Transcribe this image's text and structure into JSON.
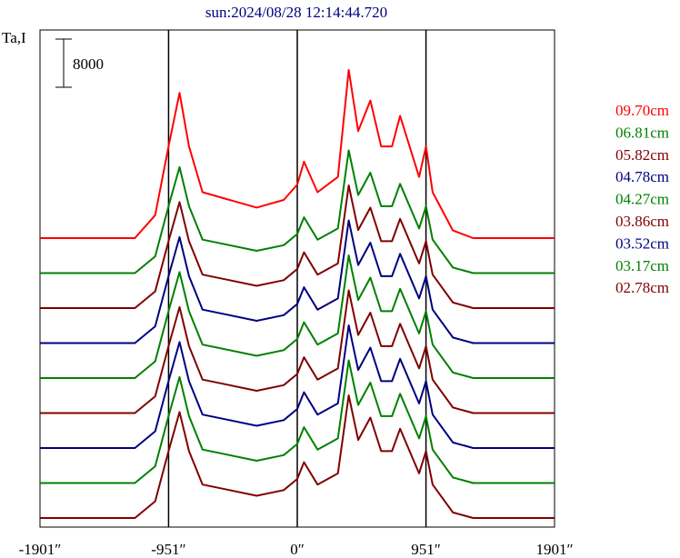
{
  "chart_data": {
    "type": "line",
    "title": "sun:2024/08/28 12:14:44.720",
    "ylabel": "Ta,I",
    "scale_bar_label": "8000",
    "xlabel": "",
    "x_tick_labels": [
      "-1901″",
      "-951″",
      "0″",
      "951″",
      "1901″"
    ],
    "x_ticks": [
      -1901,
      -951,
      0,
      951,
      1901
    ],
    "xlim": [
      -1901,
      1901
    ],
    "vertical_reference_lines": [
      -951,
      0,
      951
    ],
    "grid": false,
    "legend_position": "right",
    "profile_points": [
      {
        "x": -1901,
        "y": 0
      },
      {
        "x": -1200,
        "y": 0
      },
      {
        "x": -1050,
        "y": 1500
      },
      {
        "x": -951,
        "y": 6000
      },
      {
        "x": -870,
        "y": 9500
      },
      {
        "x": -800,
        "y": 6000
      },
      {
        "x": -700,
        "y": 3000
      },
      {
        "x": -500,
        "y": 2500
      },
      {
        "x": -300,
        "y": 2000
      },
      {
        "x": -100,
        "y": 2500
      },
      {
        "x": 0,
        "y": 3500
      },
      {
        "x": 50,
        "y": 5000
      },
      {
        "x": 150,
        "y": 3000
      },
      {
        "x": 300,
        "y": 4000
      },
      {
        "x": 380,
        "y": 11000
      },
      {
        "x": 450,
        "y": 7000
      },
      {
        "x": 540,
        "y": 9000
      },
      {
        "x": 620,
        "y": 6000
      },
      {
        "x": 700,
        "y": 6000
      },
      {
        "x": 760,
        "y": 8000
      },
      {
        "x": 900,
        "y": 4000
      },
      {
        "x": 951,
        "y": 6000
      },
      {
        "x": 1000,
        "y": 3000
      },
      {
        "x": 1150,
        "y": 500
      },
      {
        "x": 1300,
        "y": 0
      },
      {
        "x": 1901,
        "y": 0
      }
    ],
    "series": [
      {
        "name": "09.70cm",
        "color": "#ff0000"
      },
      {
        "name": "06.81cm",
        "color": "#008000"
      },
      {
        "name": "05.82cm",
        "color": "#800000"
      },
      {
        "name": "04.78cm",
        "color": "#000080"
      },
      {
        "name": "04.27cm",
        "color": "#008000"
      },
      {
        "name": "03.86cm",
        "color": "#800000"
      },
      {
        "name": "03.52cm",
        "color": "#000080"
      },
      {
        "name": "03.17cm",
        "color": "#008000"
      },
      {
        "name": "02.78cm",
        "color": "#800000"
      }
    ]
  }
}
